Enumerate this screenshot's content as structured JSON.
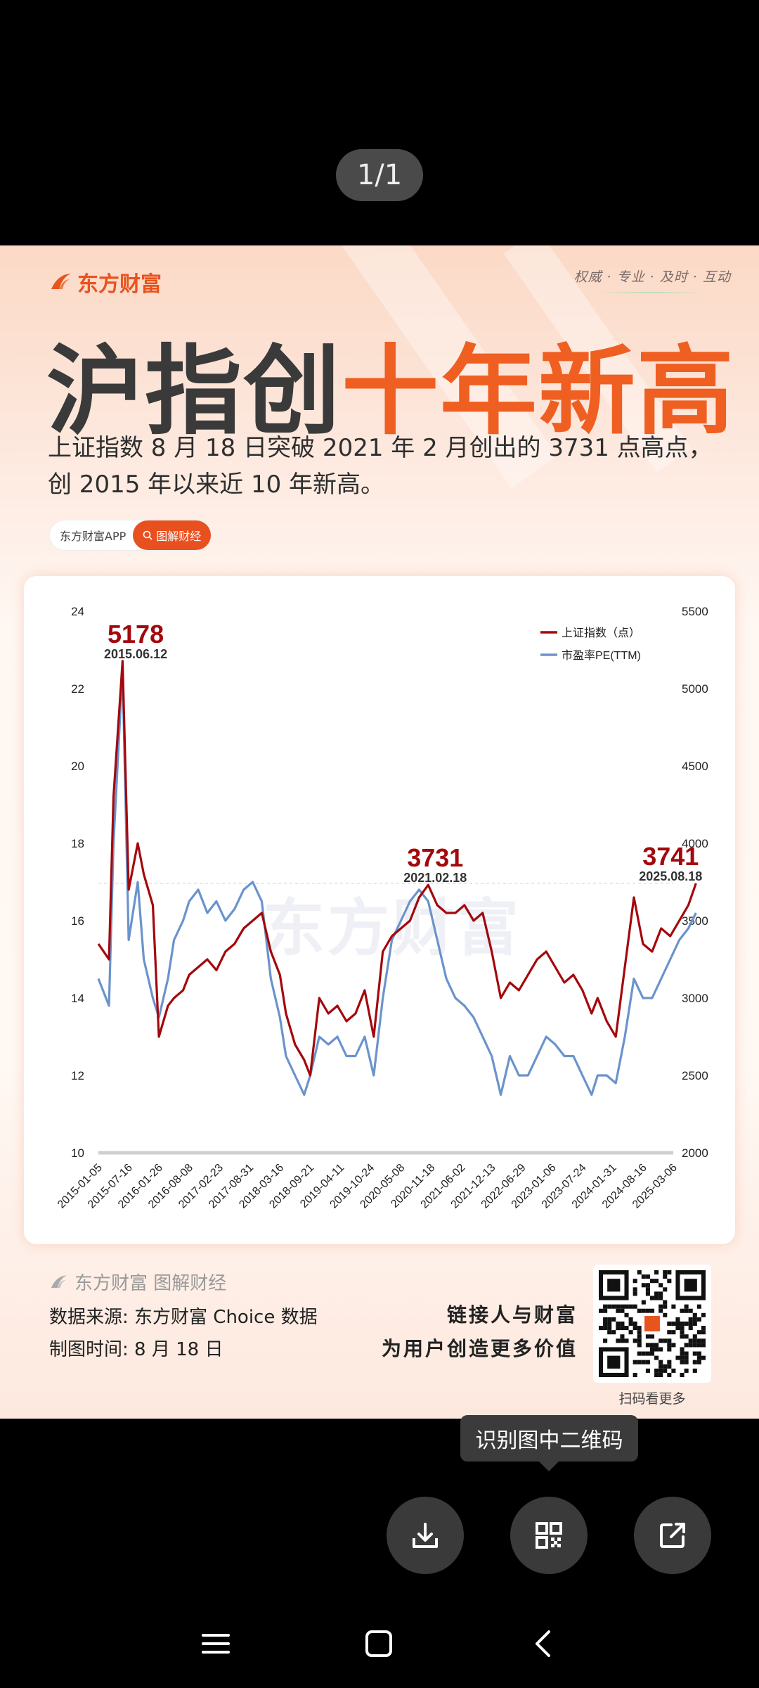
{
  "viewer": {
    "counter": "1/1"
  },
  "poster": {
    "brand": "东方财富",
    "slogan": "权威 · 专业 · 及时 · 互动",
    "headline_dark": "沪指创",
    "headline_accent": "十年新高",
    "subtitle_line1": "上证指数 8 月 18 日突破 2021 年 2 月创出的 3731 点高点，",
    "subtitle_line2": "创 2015 年以来近 10 年新高。",
    "tag_app": "东方财富APP",
    "tag_search": "图解财经",
    "watermark": "东方财富",
    "footer": {
      "brand": "东方财富 图解财经",
      "source": "数据来源: 东方财富 Choice 数据",
      "time": "制图时间: 8 月 18 日",
      "slogan1": "链接人与财富",
      "slogan2": "为用户创造更多价值",
      "qr_caption": "扫码看更多"
    }
  },
  "colors": {
    "index_series": "#a3080c",
    "pe_series": "#6b93cc",
    "accent": "#ef5f22"
  },
  "chart_data": {
    "type": "line",
    "title": "",
    "x_ticks": [
      "2015-01-05",
      "2015-07-16",
      "2016-01-26",
      "2016-08-08",
      "2017-02-23",
      "2017-08-31",
      "2018-03-16",
      "2018-09-21",
      "2019-04-11",
      "2019-10-24",
      "2020-05-08",
      "2020-11-18",
      "2021-06-02",
      "2021-12-13",
      "2022-06-29",
      "2023-01-06",
      "2023-07-24",
      "2024-01-31",
      "2024-08-16",
      "2025-03-06"
    ],
    "y_left_ticks": [
      10,
      12,
      14,
      16,
      18,
      20,
      22,
      24
    ],
    "y_right_ticks": [
      2000,
      2500,
      3000,
      3500,
      4000,
      4500,
      5000,
      5500
    ],
    "ylim_left": [
      10,
      24
    ],
    "ylim_right": [
      2000,
      5500
    ],
    "legend": [
      "上证指数（点）",
      "市盈率PE(TTM)"
    ],
    "legend_position": "top-right",
    "annotations": [
      {
        "value": "5178",
        "date": "2015.06.12"
      },
      {
        "value": "3731",
        "date": "2021.02.18"
      },
      {
        "value": "3741",
        "date": "2025.08.18"
      }
    ],
    "series": [
      {
        "name": "上证指数（点）",
        "axis": "right",
        "x": [
          0,
          0.35,
          0.5,
          0.8,
          1.0,
          1.3,
          1.5,
          1.8,
          2.0,
          2.3,
          2.5,
          2.8,
          3.0,
          3.3,
          3.6,
          3.9,
          4.2,
          4.5,
          4.8,
          5.1,
          5.4,
          5.7,
          6.0,
          6.2,
          6.5,
          6.8,
          7.0,
          7.3,
          7.6,
          7.9,
          8.2,
          8.5,
          8.8,
          9.1,
          9.4,
          9.7,
          10.0,
          10.3,
          10.6,
          10.9,
          11.2,
          11.5,
          11.8,
          12.1,
          12.4,
          12.7,
          13.0,
          13.3,
          13.6,
          13.9,
          14.2,
          14.5,
          14.8,
          15.1,
          15.4,
          15.7,
          16.0,
          16.3,
          16.5,
          16.8,
          17.1,
          17.4,
          17.7,
          18.0,
          18.3,
          18.6,
          18.9,
          19.2,
          19.5,
          19.75
        ],
        "values": [
          3350,
          3250,
          4300,
          5178,
          3700,
          4000,
          3800,
          3600,
          2750,
          2950,
          3000,
          3050,
          3150,
          3200,
          3250,
          3180,
          3300,
          3350,
          3450,
          3500,
          3550,
          3300,
          3150,
          2900,
          2700,
          2600,
          2500,
          3000,
          2900,
          2950,
          2850,
          2900,
          3050,
          2750,
          3300,
          3400,
          3450,
          3500,
          3650,
          3731,
          3600,
          3550,
          3550,
          3600,
          3500,
          3550,
          3300,
          3000,
          3100,
          3050,
          3150,
          3250,
          3300,
          3200,
          3100,
          3150,
          3050,
          2900,
          3000,
          2850,
          2750,
          3200,
          3650,
          3350,
          3300,
          3450,
          3400,
          3500,
          3600,
          3741
        ]
      },
      {
        "name": "市盈率PE(TTM)",
        "axis": "left",
        "x": [
          0,
          0.35,
          0.5,
          0.8,
          1.0,
          1.3,
          1.5,
          1.8,
          2.0,
          2.3,
          2.5,
          2.8,
          3.0,
          3.3,
          3.6,
          3.9,
          4.2,
          4.5,
          4.8,
          5.1,
          5.4,
          5.7,
          6.0,
          6.2,
          6.5,
          6.8,
          7.0,
          7.3,
          7.6,
          7.9,
          8.2,
          8.5,
          8.8,
          9.1,
          9.4,
          9.7,
          10.0,
          10.3,
          10.6,
          10.9,
          11.2,
          11.5,
          11.8,
          12.1,
          12.4,
          12.7,
          13.0,
          13.3,
          13.6,
          13.9,
          14.2,
          14.5,
          14.8,
          15.1,
          15.4,
          15.7,
          16.0,
          16.3,
          16.5,
          16.8,
          17.1,
          17.4,
          17.7,
          18.0,
          18.3,
          18.6,
          18.9,
          19.2,
          19.5,
          19.75
        ],
        "values": [
          14.5,
          13.8,
          18.0,
          22.5,
          15.5,
          17.0,
          15.0,
          14.0,
          13.5,
          14.5,
          15.5,
          16.0,
          16.5,
          16.8,
          16.2,
          16.5,
          16.0,
          16.3,
          16.8,
          17.0,
          16.5,
          14.5,
          13.5,
          12.5,
          12.0,
          11.5,
          12.0,
          13.0,
          12.8,
          13.0,
          12.5,
          12.5,
          13.0,
          12.0,
          14.0,
          15.5,
          16.0,
          16.5,
          16.8,
          16.5,
          15.5,
          14.5,
          14.0,
          13.8,
          13.5,
          13.0,
          12.5,
          11.5,
          12.5,
          12.0,
          12.0,
          12.5,
          13.0,
          12.8,
          12.5,
          12.5,
          12.0,
          11.5,
          12.0,
          12.0,
          11.8,
          13.0,
          14.5,
          14.0,
          14.0,
          14.5,
          15.0,
          15.5,
          15.8,
          16.2
        ]
      }
    ]
  },
  "actions": {
    "tooltip": "识别图中二维码"
  }
}
